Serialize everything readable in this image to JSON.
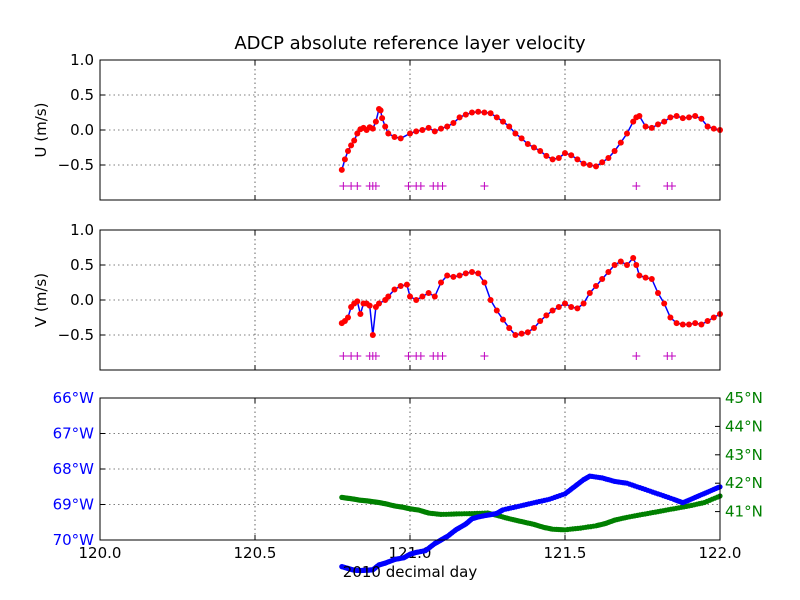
{
  "chart_data": {
    "title": "ADCP absolute reference layer velocity",
    "xlabel": "2010 decimal day",
    "xlim": [
      120.0,
      122.0
    ],
    "x_ticks": [
      "120.0",
      "120.5",
      "121.0",
      "121.5",
      "122.0"
    ],
    "panels": [
      {
        "type": "line+scatter",
        "ylabel": "U (m/s)",
        "ylim": [
          -1.0,
          1.0
        ],
        "y_ticks": [
          "1.0",
          "0.5",
          "0.0",
          "−0.5"
        ],
        "y_tick_values": [
          1.0,
          0.5,
          0.0,
          -0.5
        ],
        "grid": true,
        "line_color": "#0000ff",
        "point_color": "#ff0000",
        "flag_color": "#bf00bf",
        "flag_y": -0.8,
        "points": [
          [
            120.78,
            -0.57
          ],
          [
            120.79,
            -0.42
          ],
          [
            120.8,
            -0.3
          ],
          [
            120.81,
            -0.22
          ],
          [
            120.82,
            -0.15
          ],
          [
            120.83,
            -0.05
          ],
          [
            120.84,
            0.01
          ],
          [
            120.85,
            0.03
          ],
          [
            120.86,
            0.0
          ],
          [
            120.87,
            0.04
          ],
          [
            120.88,
            0.02
          ],
          [
            120.89,
            0.12
          ],
          [
            120.9,
            0.3
          ],
          [
            120.905,
            0.28
          ],
          [
            120.91,
            0.17
          ],
          [
            120.92,
            0.05
          ],
          [
            120.93,
            -0.05
          ],
          [
            120.95,
            -0.1
          ],
          [
            120.97,
            -0.12
          ],
          [
            121.0,
            -0.05
          ],
          [
            121.02,
            -0.02
          ],
          [
            121.04,
            0.0
          ],
          [
            121.06,
            0.03
          ],
          [
            121.08,
            -0.02
          ],
          [
            121.1,
            0.02
          ],
          [
            121.12,
            0.05
          ],
          [
            121.14,
            0.1
          ],
          [
            121.16,
            0.18
          ],
          [
            121.18,
            0.22
          ],
          [
            121.2,
            0.25
          ],
          [
            121.22,
            0.26
          ],
          [
            121.24,
            0.25
          ],
          [
            121.26,
            0.24
          ],
          [
            121.28,
            0.18
          ],
          [
            121.3,
            0.12
          ],
          [
            121.32,
            0.05
          ],
          [
            121.34,
            -0.05
          ],
          [
            121.36,
            -0.12
          ],
          [
            121.38,
            -0.2
          ],
          [
            121.4,
            -0.25
          ],
          [
            121.42,
            -0.3
          ],
          [
            121.44,
            -0.37
          ],
          [
            121.46,
            -0.42
          ],
          [
            121.48,
            -0.4
          ],
          [
            121.5,
            -0.33
          ],
          [
            121.52,
            -0.36
          ],
          [
            121.54,
            -0.42
          ],
          [
            121.56,
            -0.48
          ],
          [
            121.58,
            -0.5
          ],
          [
            121.6,
            -0.52
          ],
          [
            121.62,
            -0.46
          ],
          [
            121.64,
            -0.4
          ],
          [
            121.66,
            -0.3
          ],
          [
            121.68,
            -0.18
          ],
          [
            121.7,
            -0.05
          ],
          [
            121.72,
            0.12
          ],
          [
            121.73,
            0.18
          ],
          [
            121.74,
            0.2
          ],
          [
            121.76,
            0.05
          ],
          [
            121.78,
            0.03
          ],
          [
            121.8,
            0.08
          ],
          [
            121.82,
            0.12
          ],
          [
            121.84,
            0.18
          ],
          [
            121.86,
            0.2
          ],
          [
            121.88,
            0.17
          ],
          [
            121.9,
            0.18
          ],
          [
            121.92,
            0.2
          ],
          [
            121.94,
            0.16
          ],
          [
            121.96,
            0.05
          ],
          [
            121.98,
            0.02
          ],
          [
            122.0,
            0.0
          ]
        ],
        "flags": [
          120.785,
          120.81,
          120.83,
          120.87,
          120.88,
          120.89,
          120.995,
          121.02,
          121.035,
          121.075,
          121.09,
          121.105,
          121.24,
          121.73,
          121.83,
          121.845
        ]
      },
      {
        "type": "line+scatter",
        "ylabel": "V (m/s)",
        "ylim": [
          -1.0,
          1.0
        ],
        "y_ticks": [
          "1.0",
          "0.5",
          "0.0",
          "−0.5"
        ],
        "y_tick_values": [
          1.0,
          0.5,
          0.0,
          -0.5
        ],
        "grid": true,
        "line_color": "#0000ff",
        "point_color": "#ff0000",
        "flag_color": "#bf00bf",
        "flag_y": -0.8,
        "points": [
          [
            120.78,
            -0.33
          ],
          [
            120.79,
            -0.3
          ],
          [
            120.8,
            -0.25
          ],
          [
            120.81,
            -0.1
          ],
          [
            120.82,
            -0.05
          ],
          [
            120.83,
            -0.02
          ],
          [
            120.84,
            -0.2
          ],
          [
            120.85,
            -0.05
          ],
          [
            120.86,
            -0.05
          ],
          [
            120.87,
            -0.08
          ],
          [
            120.88,
            -0.5
          ],
          [
            120.89,
            -0.1
          ],
          [
            120.9,
            -0.05
          ],
          [
            120.92,
            0.0
          ],
          [
            120.93,
            0.05
          ],
          [
            120.95,
            0.15
          ],
          [
            120.97,
            0.2
          ],
          [
            120.99,
            0.22
          ],
          [
            121.0,
            0.05
          ],
          [
            121.02,
            0.0
          ],
          [
            121.04,
            0.05
          ],
          [
            121.06,
            0.1
          ],
          [
            121.08,
            0.05
          ],
          [
            121.1,
            0.25
          ],
          [
            121.12,
            0.35
          ],
          [
            121.14,
            0.33
          ],
          [
            121.16,
            0.35
          ],
          [
            121.18,
            0.38
          ],
          [
            121.2,
            0.4
          ],
          [
            121.22,
            0.38
          ],
          [
            121.24,
            0.25
          ],
          [
            121.26,
            0.0
          ],
          [
            121.28,
            -0.15
          ],
          [
            121.3,
            -0.28
          ],
          [
            121.32,
            -0.4
          ],
          [
            121.34,
            -0.5
          ],
          [
            121.36,
            -0.48
          ],
          [
            121.38,
            -0.46
          ],
          [
            121.4,
            -0.4
          ],
          [
            121.42,
            -0.3
          ],
          [
            121.44,
            -0.22
          ],
          [
            121.46,
            -0.15
          ],
          [
            121.48,
            -0.1
          ],
          [
            121.5,
            -0.05
          ],
          [
            121.52,
            -0.1
          ],
          [
            121.54,
            -0.12
          ],
          [
            121.56,
            -0.05
          ],
          [
            121.58,
            0.1
          ],
          [
            121.6,
            0.2
          ],
          [
            121.62,
            0.3
          ],
          [
            121.64,
            0.4
          ],
          [
            121.66,
            0.5
          ],
          [
            121.68,
            0.55
          ],
          [
            121.7,
            0.5
          ],
          [
            121.72,
            0.6
          ],
          [
            121.73,
            0.5
          ],
          [
            121.74,
            0.35
          ],
          [
            121.76,
            0.32
          ],
          [
            121.78,
            0.3
          ],
          [
            121.8,
            0.1
          ],
          [
            121.82,
            -0.05
          ],
          [
            121.84,
            -0.25
          ],
          [
            121.86,
            -0.33
          ],
          [
            121.88,
            -0.35
          ],
          [
            121.9,
            -0.35
          ],
          [
            121.92,
            -0.33
          ],
          [
            121.94,
            -0.35
          ],
          [
            121.96,
            -0.3
          ],
          [
            121.98,
            -0.25
          ],
          [
            122.0,
            -0.2
          ]
        ],
        "flags": [
          120.785,
          120.81,
          120.83,
          120.87,
          120.88,
          120.89,
          120.995,
          121.02,
          121.035,
          121.075,
          121.09,
          121.105,
          121.24,
          121.73,
          121.83,
          121.845
        ]
      },
      {
        "type": "scatter-dual-axis",
        "grid": true,
        "left_axis": {
          "color": "#0000ff",
          "ylim": [
            -70.0,
            -66.0
          ],
          "y_ticks": [
            "66°W",
            "67°W",
            "68°W",
            "69°W",
            "70°W"
          ],
          "y_tick_values": [
            -66.0,
            -67.0,
            -68.0,
            -69.0,
            -70.0
          ],
          "series": [
            [
              120.78,
              -70.75
            ],
            [
              120.8,
              -70.8
            ],
            [
              120.82,
              -70.85
            ],
            [
              120.84,
              -70.86
            ],
            [
              120.86,
              -70.85
            ],
            [
              120.88,
              -70.84
            ],
            [
              120.9,
              -70.7
            ],
            [
              120.92,
              -70.65
            ],
            [
              120.95,
              -70.55
            ],
            [
              120.98,
              -70.5
            ],
            [
              121.0,
              -70.4
            ],
            [
              121.02,
              -70.35
            ],
            [
              121.05,
              -70.3
            ],
            [
              121.08,
              -70.1
            ],
            [
              121.1,
              -70.0
            ],
            [
              121.12,
              -69.9
            ],
            [
              121.15,
              -69.7
            ],
            [
              121.18,
              -69.55
            ],
            [
              121.2,
              -69.4
            ],
            [
              121.22,
              -69.35
            ],
            [
              121.25,
              -69.3
            ],
            [
              121.28,
              -69.25
            ],
            [
              121.3,
              -69.15
            ],
            [
              121.35,
              -69.05
            ],
            [
              121.4,
              -68.95
            ],
            [
              121.45,
              -68.85
            ],
            [
              121.5,
              -68.7
            ],
            [
              121.53,
              -68.5
            ],
            [
              121.56,
              -68.3
            ],
            [
              121.58,
              -68.2
            ],
            [
              121.62,
              -68.25
            ],
            [
              121.66,
              -68.35
            ],
            [
              121.7,
              -68.4
            ],
            [
              121.75,
              -68.55
            ],
            [
              121.8,
              -68.7
            ],
            [
              121.85,
              -68.85
            ],
            [
              121.88,
              -68.95
            ],
            [
              121.92,
              -68.8
            ],
            [
              121.96,
              -68.65
            ],
            [
              122.0,
              -68.5
            ]
          ]
        },
        "right_axis": {
          "color": "#008000",
          "ylim": [
            40.0,
            45.0
          ],
          "y_ticks": [
            "45°N",
            "44°N",
            "43°N",
            "42°N",
            "41°N"
          ],
          "y_tick_values": [
            45.0,
            44.0,
            43.0,
            42.0,
            41.0
          ],
          "series": [
            [
              120.78,
              41.5
            ],
            [
              120.8,
              41.47
            ],
            [
              120.82,
              41.44
            ],
            [
              120.84,
              41.4
            ],
            [
              120.86,
              41.38
            ],
            [
              120.88,
              41.35
            ],
            [
              120.9,
              41.32
            ],
            [
              120.92,
              41.28
            ],
            [
              120.95,
              41.2
            ],
            [
              120.98,
              41.15
            ],
            [
              121.0,
              41.1
            ],
            [
              121.03,
              41.05
            ],
            [
              121.06,
              40.95
            ],
            [
              121.1,
              40.9
            ],
            [
              121.15,
              40.92
            ],
            [
              121.2,
              40.93
            ],
            [
              121.25,
              40.95
            ],
            [
              121.28,
              40.87
            ],
            [
              121.32,
              40.75
            ],
            [
              121.36,
              40.65
            ],
            [
              121.4,
              40.55
            ],
            [
              121.43,
              40.45
            ],
            [
              121.46,
              40.38
            ],
            [
              121.5,
              40.36
            ],
            [
              121.55,
              40.42
            ],
            [
              121.6,
              40.5
            ],
            [
              121.63,
              40.58
            ],
            [
              121.66,
              40.7
            ],
            [
              121.7,
              40.8
            ],
            [
              121.75,
              40.9
            ],
            [
              121.8,
              41.0
            ],
            [
              121.85,
              41.1
            ],
            [
              121.9,
              41.2
            ],
            [
              121.95,
              41.32
            ],
            [
              122.0,
              41.55
            ]
          ]
        }
      }
    ]
  }
}
